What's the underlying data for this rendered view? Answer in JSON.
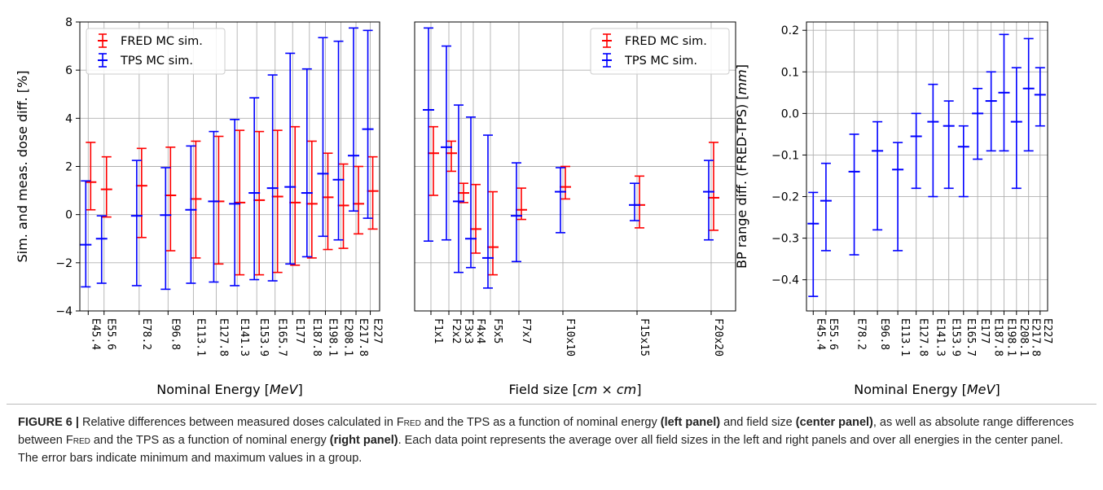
{
  "colors": {
    "fred": "#ff0000",
    "tps": "#0000ff",
    "grid": "#b0b0b0",
    "axis": "#000000"
  },
  "chart_data": [
    {
      "id": "left",
      "type": "errorbar",
      "xlabel_pre": "Nominal Energy [",
      "xlabel_unit": "MeV",
      "xlabel_post": "]",
      "ylabel": "Sim. and meas. dose diff. [%]",
      "ylim": [
        -4,
        8
      ],
      "yticks": [
        -4,
        -2,
        0,
        2,
        4,
        6,
        8
      ],
      "grid": true,
      "legend_position": "top-left",
      "categories": [
        "E45.4",
        "E55.6",
        "E78.2",
        "E96.8",
        "E113.1",
        "E127.8",
        "E141.3",
        "E153.9",
        "E165.7",
        "E177",
        "E187.8",
        "E198.1",
        "E208.1",
        "E217.8",
        "E227"
      ],
      "x": [
        45.4,
        55.6,
        78.2,
        96.8,
        113.1,
        127.8,
        141.3,
        153.9,
        165.7,
        177,
        187.8,
        198.1,
        208.1,
        217.8,
        227
      ],
      "series": [
        {
          "name": "FRED MC sim.",
          "color": "#ff0000",
          "y": [
            1.35,
            1.05,
            1.2,
            0.8,
            0.65,
            0.55,
            0.5,
            0.6,
            0.75,
            0.5,
            0.45,
            0.72,
            0.38,
            0.45,
            0.98
          ],
          "min": [
            0.2,
            -0.1,
            -0.95,
            -1.5,
            -1.8,
            -2.05,
            -2.5,
            -2.5,
            -2.4,
            -2.1,
            -1.8,
            -1.45,
            -1.4,
            -0.8,
            -0.6
          ],
          "max": [
            3.0,
            2.4,
            2.75,
            2.8,
            3.05,
            3.25,
            3.5,
            3.45,
            3.5,
            3.65,
            3.05,
            2.55,
            2.1,
            2.0,
            2.4
          ]
        },
        {
          "name": "TPS MC sim.",
          "color": "#0000ff",
          "y": [
            -1.25,
            -1.0,
            -0.05,
            -0.02,
            0.2,
            0.55,
            0.45,
            0.9,
            1.1,
            1.15,
            0.9,
            1.7,
            1.45,
            2.45,
            3.55
          ],
          "min": [
            -3.0,
            -2.85,
            -2.95,
            -3.1,
            -2.85,
            -2.8,
            -2.95,
            -2.7,
            -2.75,
            -2.05,
            -1.75,
            -0.9,
            -1.05,
            0.15,
            -0.15
          ],
          "max": [
            1.4,
            -0.05,
            2.25,
            1.95,
            2.85,
            3.45,
            3.95,
            4.85,
            5.8,
            6.7,
            6.05,
            7.35,
            7.2,
            7.75,
            7.65
          ]
        }
      ]
    },
    {
      "id": "center",
      "type": "errorbar",
      "xlabel_pre": "Field size [",
      "xlabel_unit": "cm × cm",
      "xlabel_post": "]",
      "ylim": [
        -4,
        8
      ],
      "grid": true,
      "legend_position": "top-right",
      "categories": [
        "F1x1",
        "F2x2",
        "F3x3",
        "F4x4",
        "F5x5",
        "F7x7",
        "F10x10",
        "F15x15",
        "F20x20"
      ],
      "x": [
        1,
        2,
        3,
        4,
        5,
        7,
        10,
        15,
        20
      ],
      "series": [
        {
          "name": "FRED MC sim.",
          "color": "#ff0000",
          "y": [
            2.55,
            2.55,
            0.9,
            -0.6,
            -1.35,
            0.2,
            1.15,
            0.4,
            0.7
          ],
          "min": [
            0.8,
            1.8,
            0.5,
            -1.6,
            -2.5,
            -0.2,
            0.65,
            -0.55,
            -0.65
          ],
          "max": [
            3.65,
            3.05,
            1.3,
            1.25,
            0.95,
            1.1,
            2.0,
            1.6,
            3.0
          ]
        },
        {
          "name": "TPS MC sim.",
          "color": "#0000ff",
          "y": [
            4.35,
            2.8,
            0.55,
            -1.0,
            -1.8,
            -0.05,
            0.95,
            0.4,
            0.95
          ],
          "min": [
            -1.1,
            -1.05,
            -2.4,
            -2.2,
            -3.05,
            -1.95,
            -0.75,
            -0.25,
            -1.05
          ],
          "max": [
            7.75,
            7.0,
            4.55,
            4.05,
            3.3,
            2.15,
            1.95,
            1.3,
            2.25
          ]
        }
      ]
    },
    {
      "id": "right",
      "type": "errorbar",
      "xlabel_pre": "Nominal Energy [",
      "xlabel_unit": "MeV",
      "xlabel_post": "]",
      "ylabel_pre": "BP range diff. (FRED-TPS)  [",
      "ylabel_unit": "mm",
      "ylabel_post": "]",
      "ylim": [
        -0.475,
        0.22
      ],
      "yticks": [
        -0.4,
        -0.3,
        -0.2,
        -0.1,
        0.0,
        0.1,
        0.2
      ],
      "ytick_labels": [
        "−0.4",
        "−0.3",
        "−0.2",
        "−0.1",
        "0.0",
        "0.1",
        "0.2"
      ],
      "grid": true,
      "categories": [
        "E45.4",
        "E55.6",
        "E78.2",
        "E96.8",
        "E113.1",
        "E127.8",
        "E141.3",
        "E153.9",
        "E165.7",
        "E177",
        "E187.8",
        "E198.1",
        "E208.1",
        "E217.8",
        "E227"
      ],
      "x": [
        45.4,
        55.6,
        78.2,
        96.8,
        113.1,
        127.8,
        141.3,
        153.9,
        165.7,
        177,
        187.8,
        198.1,
        208.1,
        217.8,
        227
      ],
      "series": [
        {
          "color": "#0000ff",
          "y": [
            -0.265,
            -0.21,
            -0.14,
            -0.09,
            -0.135,
            -0.055,
            -0.02,
            -0.03,
            -0.08,
            0.0,
            0.03,
            0.05,
            -0.02,
            0.06,
            0.045
          ],
          "min": [
            -0.44,
            -0.33,
            -0.34,
            -0.28,
            -0.33,
            -0.18,
            -0.2,
            -0.18,
            -0.2,
            -0.11,
            -0.09,
            -0.09,
            -0.18,
            -0.09,
            -0.03
          ],
          "max": [
            -0.19,
            -0.12,
            -0.05,
            -0.02,
            -0.07,
            0.0,
            0.07,
            0.03,
            -0.03,
            0.06,
            0.1,
            0.19,
            0.11,
            0.18,
            0.11
          ]
        }
      ]
    }
  ],
  "caption": {
    "label": "FIGURE 6 |",
    "t1": " Relative differences between measured doses calculated in ",
    "fred1": "Fred",
    "t2": " and the TPS as a function of nominal energy ",
    "b1": "(left panel)",
    "t3": " and field size ",
    "b2": "(center panel)",
    "t4": ", as well as absolute range differences between ",
    "fred2": "Fred",
    "t5": " and the TPS as a function of nominal energy ",
    "b3": "(right panel)",
    "t6": ". Each data point represents the average over all field sizes in the left and right panels and over all energies in the center panel. The error bars indicate minimum and maximum values in a group."
  }
}
